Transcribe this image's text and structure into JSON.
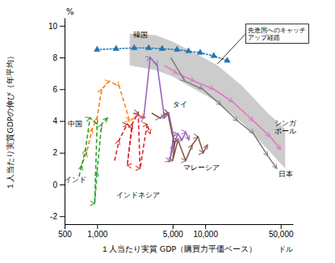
{
  "chart_data": {
    "type": "line",
    "log": "x",
    "grid": false,
    "xlabel": "１人当たり実質 GDP（購買力平価ベース）",
    "ylabel": "１人当たり実質GDPの伸び（年平均）",
    "x_unit": "ドル",
    "y_unit": "%",
    "xlim": [
      500,
      65000
    ],
    "ylim": [
      -2.5,
      10.5
    ],
    "xticks": [
      500,
      {
        "value": 1000,
        "label": "1,000"
      },
      {
        "value": 5000,
        "label": "5,000"
      },
      {
        "value": 10000,
        "label": "10,000"
      },
      {
        "value": 50000,
        "label": "50,000"
      }
    ],
    "yticks": [
      -2,
      0,
      2,
      4,
      6,
      8,
      10
    ],
    "band": {
      "x": [
        2000,
        3500,
        5000,
        8000,
        13000,
        22000,
        38000,
        55000
      ],
      "upper": [
        9.5,
        9.4,
        9.0,
        8.3,
        7.5,
        6.2,
        4.5,
        3.5
      ],
      "lower": [
        7.5,
        7.2,
        6.8,
        6.0,
        5.2,
        3.9,
        2.2,
        1.0
      ],
      "color": "#bbbbbb"
    },
    "series": [
      {
        "x": [
          1000,
          1500,
          2200,
          3000,
          4000,
          5500,
          7000,
          9000,
          12000,
          16000
        ],
        "values": [
          8.5,
          8.55,
          8.6,
          8.6,
          8.55,
          8.5,
          8.4,
          8.3,
          8.1,
          7.8
        ],
        "line_style": "dotted",
        "marker": "triangle"
      },
      {
        "x": [
          700,
          800,
          900,
          1000,
          1100,
          1300,
          1600,
          2000,
          2400,
          2800
        ],
        "values": [
          1.0,
          2.0,
          3.5,
          4.2,
          6.0,
          6.5,
          6.2,
          4.0,
          4.4,
          4.2
        ],
        "line_style": "dashed",
        "marker": "arrow"
      },
      {
        "x": [
          680,
          720,
          780,
          860,
          1000,
          950,
          1000,
          1100,
          1250
        ],
        "values": [
          0.5,
          1.2,
          2.2,
          4.2,
          3.8,
          -1.2,
          0.8,
          3.8,
          4.2
        ],
        "line_style": "dashed",
        "marker": "arrow"
      },
      {
        "x": [
          1450,
          1600,
          1900,
          2100,
          1900,
          2100,
          2400,
          2500,
          2900,
          3100
        ],
        "values": [
          1.5,
          2.8,
          3.8,
          3.5,
          1.2,
          3.8,
          4.5,
          1.0,
          3.8,
          3.2
        ],
        "line_style": "dashed",
        "marker": "arrow"
      },
      {
        "x": [
          2200,
          2700,
          3100,
          3600,
          4200,
          4600,
          5100,
          4700,
          5100,
          5600,
          6100,
          6600,
          7100
        ],
        "values": [
          4.5,
          4.2,
          8.0,
          7.5,
          4.2,
          4.5,
          3.0,
          1.5,
          2.5,
          3.2,
          2.8,
          3.3,
          2.8
        ],
        "line_style": "solid",
        "marker": "arrow"
      },
      {
        "x": [
          3200,
          3800,
          4500,
          5200,
          5000,
          5600,
          6600,
          7600,
          8600,
          9600,
          10500
        ],
        "values": [
          4.5,
          4.2,
          4.5,
          2.5,
          1.5,
          2.8,
          1.5,
          2.5,
          3.0,
          2.0,
          2.5
        ],
        "line_style": "solid",
        "marker": "arrow"
      },
      {
        "x": [
          4200,
          5500,
          8000,
          12000,
          18000,
          28000,
          40000,
          50000
        ],
        "values": [
          7.5,
          7.0,
          6.5,
          6.0,
          5.2,
          4.0,
          3.0,
          2.2
        ],
        "line_style": "solid",
        "marker": "arrow"
      },
      {
        "x": [
          4800,
          6500,
          9500,
          14000,
          20000,
          28000,
          38000,
          46000
        ],
        "values": [
          8.0,
          6.5,
          6.0,
          5.0,
          4.0,
          3.2,
          1.8,
          1.0
        ],
        "line_style": "solid",
        "marker": "arrow"
      }
    ],
    "annotations": [
      {
        "text": "韓国",
        "x": 2500,
        "y": 9.15
      },
      {
        "text": "中国",
        "x": 630,
        "y": 3.8
      },
      {
        "text": "インド",
        "x": 630,
        "y": 0.3
      },
      {
        "text": "インドネシア",
        "x": 1500,
        "y": -0.5
      },
      {
        "text": "タイ",
        "x": 5000,
        "y": 4.8
      },
      {
        "text": "マレーシア",
        "x": 6300,
        "y": 1.2
      },
      {
        "text": "シンガ\nポール",
        "x": 44000,
        "y": 3.6
      },
      {
        "text": "日本",
        "x": 48000,
        "y": 0.8
      }
    ],
    "callout": {
      "text": "先進国へのキャッチ\nアップ経路",
      "x": 25000,
      "y": 9.5,
      "target_x": 13000,
      "target_y": 7.6
    }
  }
}
